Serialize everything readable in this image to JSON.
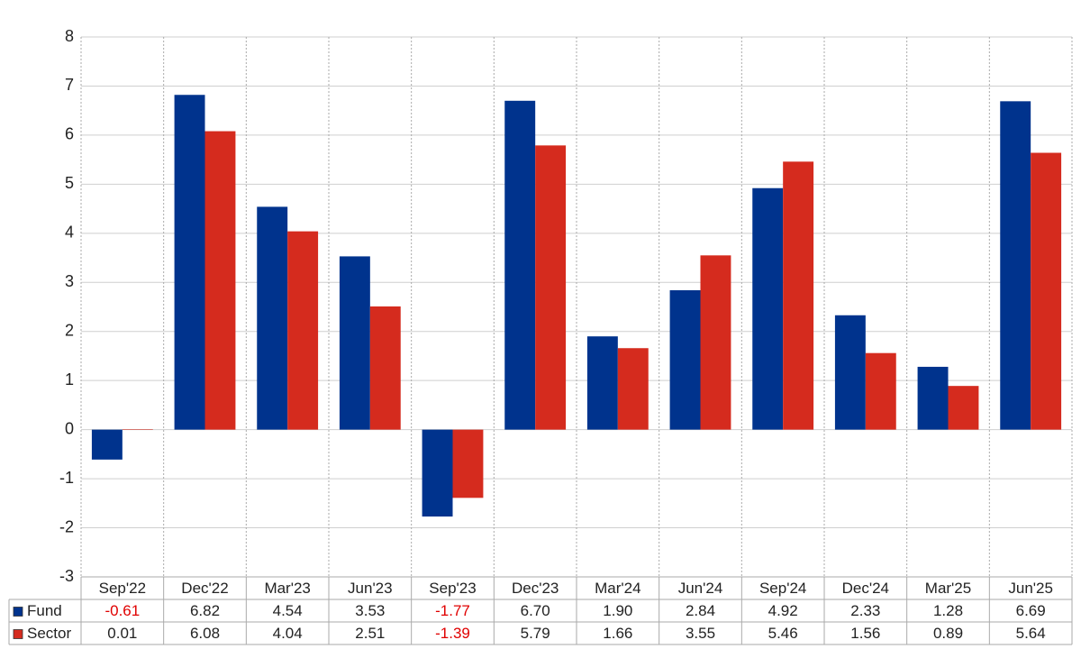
{
  "chart_data": {
    "type": "bar",
    "categories": [
      "Sep'22",
      "Dec'22",
      "Mar'23",
      "Jun'23",
      "Sep'23",
      "Dec'23",
      "Mar'24",
      "Jun'24",
      "Sep'24",
      "Dec'24",
      "Mar'25",
      "Jun'25"
    ],
    "series": [
      {
        "name": "Fund",
        "color": "#00338d",
        "values": [
          -0.61,
          6.82,
          4.54,
          3.53,
          -1.77,
          6.7,
          1.9,
          2.84,
          4.92,
          2.33,
          1.28,
          6.69
        ],
        "value_labels": [
          "-0.61",
          "6.82",
          "4.54",
          "3.53",
          "-1.77",
          "6.70",
          "1.90",
          "2.84",
          "4.92",
          "2.33",
          "1.28",
          "6.69"
        ]
      },
      {
        "name": "Sector",
        "color": "#d52b1e",
        "values": [
          0.01,
          6.08,
          4.04,
          2.51,
          -1.39,
          5.79,
          1.66,
          3.55,
          5.46,
          1.56,
          0.89,
          5.64
        ],
        "value_labels": [
          "0.01",
          "6.08",
          "4.04",
          "2.51",
          "-1.39",
          "5.79",
          "1.66",
          "3.55",
          "5.46",
          "1.56",
          "0.89",
          "5.64"
        ]
      }
    ],
    "ylim": [
      -3,
      8
    ],
    "yticks": [
      -3,
      -2,
      -1,
      0,
      1,
      2,
      3,
      4,
      5,
      6,
      7,
      8
    ],
    "grid": true
  }
}
